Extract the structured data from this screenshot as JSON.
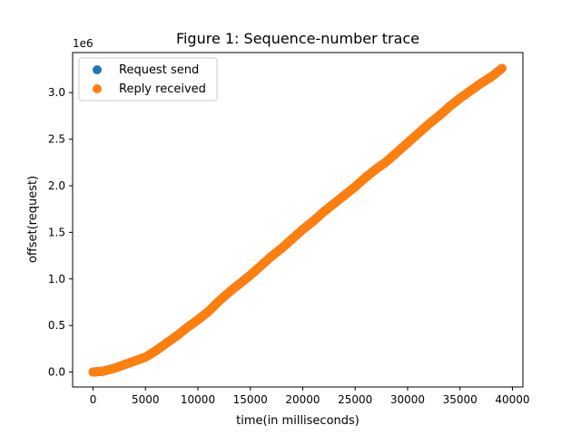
{
  "chart_data": {
    "type": "scatter",
    "title": "Figure 1: Sequence-number trace",
    "xlabel": "time(in milliseconds)",
    "ylabel": "offset(request)",
    "y_offset_text": "1e6",
    "xlim": [
      -1950,
      41000
    ],
    "ylim": [
      -160000,
      3430000
    ],
    "x_ticks": [
      0,
      5000,
      10000,
      15000,
      20000,
      25000,
      30000,
      35000,
      40000
    ],
    "x_tick_labels": [
      "0",
      "5000",
      "10000",
      "15000",
      "20000",
      "25000",
      "30000",
      "35000",
      "40000"
    ],
    "y_ticks": [
      0,
      500000,
      1000000,
      1500000,
      2000000,
      2500000,
      3000000
    ],
    "y_tick_labels": [
      "0.0",
      "0.5",
      "1.0",
      "1.5",
      "2.0",
      "2.5",
      "3.0"
    ],
    "grid": false,
    "legend_position": "top-left",
    "series": [
      {
        "name": "Request send",
        "color": "#1f77b4",
        "x": [
          0,
          1000,
          2000,
          3000,
          4000,
          5000,
          6000,
          7000,
          8000,
          9000,
          10000,
          11000,
          12000,
          13000,
          14000,
          15000,
          16000,
          17000,
          18000,
          19000,
          20000,
          21000,
          22000,
          23000,
          24000,
          25000,
          26000,
          27000,
          28000,
          29000,
          30000,
          31000,
          32000,
          33000,
          34000,
          35000,
          36000,
          37000,
          38000,
          39000
        ],
        "y": [
          0,
          10000,
          40000,
          80000,
          120000,
          160000,
          230000,
          310000,
          390000,
          480000,
          560000,
          650000,
          760000,
          860000,
          950000,
          1040000,
          1140000,
          1240000,
          1330000,
          1430000,
          1530000,
          1620000,
          1720000,
          1810000,
          1900000,
          1990000,
          2090000,
          2180000,
          2260000,
          2360000,
          2460000,
          2560000,
          2660000,
          2750000,
          2850000,
          2940000,
          3020000,
          3100000,
          3170000,
          3260000
        ]
      },
      {
        "name": "Reply received",
        "color": "#ff7f0e",
        "x": [
          0,
          1000,
          2000,
          3000,
          4000,
          5000,
          6000,
          7000,
          8000,
          9000,
          10000,
          11000,
          12000,
          13000,
          14000,
          15000,
          16000,
          17000,
          18000,
          19000,
          20000,
          21000,
          22000,
          23000,
          24000,
          25000,
          26000,
          27000,
          28000,
          29000,
          30000,
          31000,
          32000,
          33000,
          34000,
          35000,
          36000,
          37000,
          38000,
          39000
        ],
        "y": [
          0,
          10000,
          40000,
          80000,
          120000,
          160000,
          230000,
          310000,
          390000,
          480000,
          560000,
          650000,
          760000,
          860000,
          950000,
          1040000,
          1140000,
          1240000,
          1330000,
          1430000,
          1530000,
          1620000,
          1720000,
          1810000,
          1900000,
          1990000,
          2090000,
          2180000,
          2260000,
          2360000,
          2460000,
          2560000,
          2660000,
          2750000,
          2850000,
          2940000,
          3020000,
          3100000,
          3170000,
          3260000
        ]
      }
    ]
  }
}
